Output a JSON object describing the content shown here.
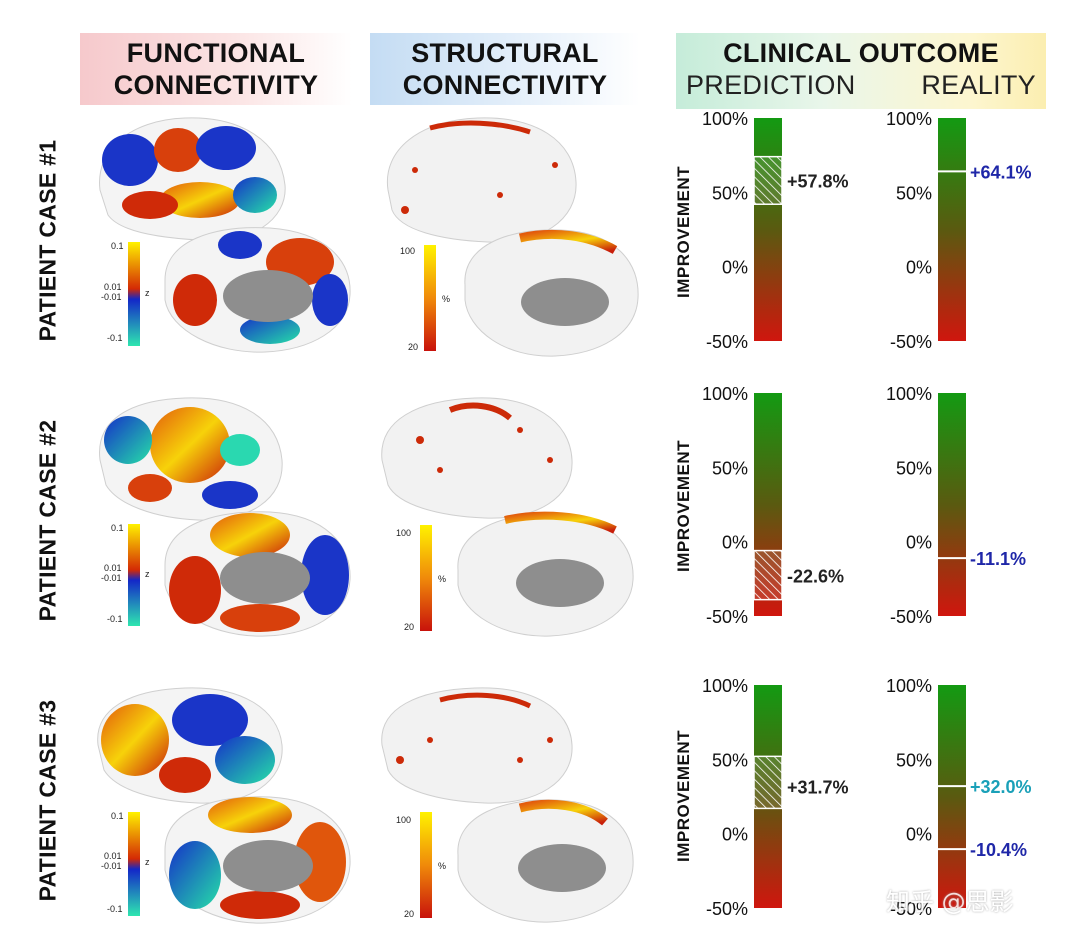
{
  "headers": {
    "functional": [
      "FUNCTIONAL",
      "CONNECTIVITY"
    ],
    "structural": [
      "STRUCTURAL",
      "CONNECTIVITY"
    ],
    "clinical_title": "CLINICAL OUTCOME",
    "prediction": "PREDICTION",
    "reality": "REALITY"
  },
  "improvement_label": "IMPROVEMENT",
  "colors": {
    "bar_top": "#139a12",
    "bar_bottom": "#d0160e",
    "prediction_value": "#222222",
    "reality_value": "#1f27a8",
    "reality_value_alt": "#1aa0b8"
  },
  "scales": {
    "fc_ticks": [
      "0.1",
      "0.01",
      "-0.01",
      "-0.1"
    ],
    "fc_unit": "z",
    "sc_ticks": [
      "100",
      "20"
    ],
    "sc_unit": "%",
    "bar_ticks": [
      "100%",
      "50%",
      "0%",
      "-50%"
    ]
  },
  "cases": [
    {
      "label": "PATIENT CASE #1",
      "prediction": {
        "value": 57.8,
        "text": "+57.8%",
        "range": [
          42,
          74
        ]
      },
      "reality": [
        {
          "value": 64.1,
          "text": "+64.1%",
          "color": "#1f27a8"
        }
      ]
    },
    {
      "label": "PATIENT CASE #2",
      "prediction": {
        "value": -22.6,
        "text": "-22.6%",
        "range": [
          -39,
          -6
        ]
      },
      "reality": [
        {
          "value": -11.1,
          "text": "-11.1%",
          "color": "#1f27a8"
        }
      ]
    },
    {
      "label": "PATIENT CASE #3",
      "prediction": {
        "value": 31.7,
        "text": "+31.7%",
        "range": [
          17,
          52
        ]
      },
      "reality": [
        {
          "value": 32.0,
          "text": "+32.0%",
          "color": "#1aa0b8"
        },
        {
          "value": -10.4,
          "text": "-10.4%",
          "color": "#1f27a8"
        }
      ]
    }
  ],
  "watermark": "知乎 @思影"
}
